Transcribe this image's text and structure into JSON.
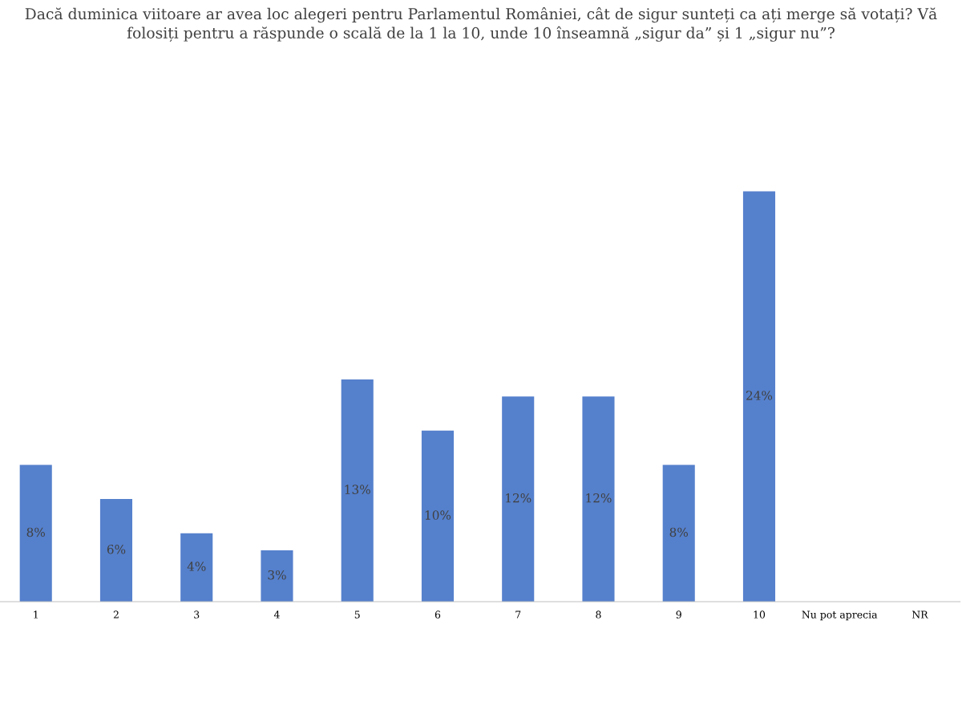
{
  "chart_data": {
    "type": "bar",
    "title": "Dacă duminica viitoare ar avea loc alegeri pentru Parlamentul României, cât de sigur sunteți ca ați merge să votați? Vă\nfolosiți pentru a răspunde o scală de la 1 la 10, unde 10 înseamnă „sigur da” și 1 „sigur nu”?",
    "categories": [
      "1",
      "2",
      "3",
      "4",
      "5",
      "6",
      "7",
      "8",
      "9",
      "10",
      "Nu pot aprecia",
      "NR"
    ],
    "values": [
      8,
      6,
      4,
      3,
      13,
      10,
      12,
      12,
      8,
      24,
      null,
      null
    ],
    "value_labels": [
      "8%",
      "6%",
      "4%",
      "3%",
      "13%",
      "10%",
      "12%",
      "12%",
      "8%",
      "24%",
      null,
      null
    ],
    "color": "#5580cc",
    "grid": false,
    "legend": false
  }
}
